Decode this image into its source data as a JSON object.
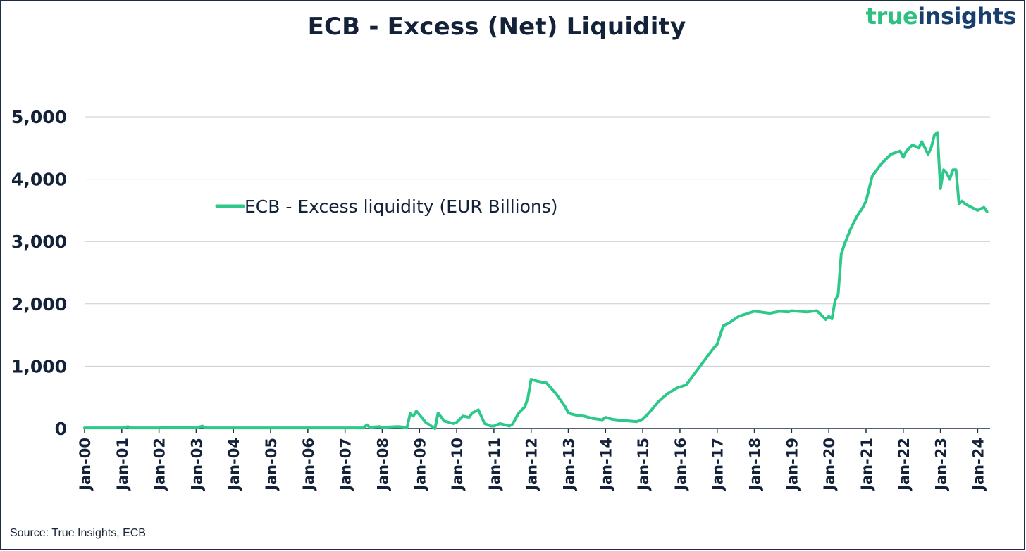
{
  "brand": {
    "word1": "true",
    "word2": "insights"
  },
  "source_note": "Source: True Insights, ECB",
  "colors": {
    "series": "#2ec98a",
    "text": "#132139",
    "grid": "#c9ccd1",
    "axis": "#1f2d44"
  },
  "chart_data": {
    "type": "line",
    "title": "ECB - Excess (Net) Liquidity",
    "xlabel": "",
    "ylabel": "",
    "ylim": [
      0,
      5000
    ],
    "yticks": [
      0,
      1000,
      2000,
      3000,
      4000,
      5000
    ],
    "ytick_labels": [
      "0",
      "1,000",
      "2,000",
      "3,000",
      "4,000",
      "5,000"
    ],
    "xlim": [
      "2000-01",
      "2024-05"
    ],
    "xtick_labels": [
      "Jan-00",
      "Jan-01",
      "Jan-02",
      "Jan-03",
      "Jan-04",
      "Jan-05",
      "Jan-06",
      "Jan-07",
      "Jan-08",
      "Jan-09",
      "Jan-10",
      "Jan-11",
      "Jan-12",
      "Jan-13",
      "Jan-14",
      "Jan-15",
      "Jan-16",
      "Jan-17",
      "Jan-18",
      "Jan-19",
      "Jan-20",
      "Jan-21",
      "Jan-22",
      "Jan-23",
      "Jan-24"
    ],
    "grid": "horizontal",
    "legend": "upper-left",
    "series": [
      {
        "name": "ECB - Excess liquidity (EUR Billions)",
        "x": [
          "2000-01",
          "2000-06",
          "2001-01",
          "2001-03",
          "2001-04",
          "2001-09",
          "2002-01",
          "2002-06",
          "2003-01",
          "2003-03",
          "2003-04",
          "2003-09",
          "2004-01",
          "2005-01",
          "2006-01",
          "2007-01",
          "2007-07",
          "2007-08",
          "2007-09",
          "2007-12",
          "2008-01",
          "2008-06",
          "2008-09",
          "2008-10",
          "2008-11",
          "2008-12",
          "2009-01",
          "2009-03",
          "2009-06",
          "2009-07",
          "2009-09",
          "2009-12",
          "2010-01",
          "2010-03",
          "2010-05",
          "2010-06",
          "2010-08",
          "2010-10",
          "2010-12",
          "2011-01",
          "2011-03",
          "2011-06",
          "2011-07",
          "2011-09",
          "2011-11",
          "2011-12",
          "2012-01",
          "2012-03",
          "2012-06",
          "2012-09",
          "2012-12",
          "2013-01",
          "2013-03",
          "2013-06",
          "2013-09",
          "2013-12",
          "2014-01",
          "2014-03",
          "2014-06",
          "2014-09",
          "2014-11",
          "2015-01",
          "2015-03",
          "2015-06",
          "2015-09",
          "2015-12",
          "2016-03",
          "2016-06",
          "2016-09",
          "2016-12",
          "2017-01",
          "2017-03",
          "2017-05",
          "2017-08",
          "2017-11",
          "2018-01",
          "2018-03",
          "2018-06",
          "2018-09",
          "2018-12",
          "2019-01",
          "2019-03",
          "2019-06",
          "2019-09",
          "2019-10",
          "2019-12",
          "2020-01",
          "2020-02",
          "2020-03",
          "2020-04",
          "2020-05",
          "2020-06",
          "2020-08",
          "2020-10",
          "2020-12",
          "2021-01",
          "2021-03",
          "2021-06",
          "2021-09",
          "2021-12",
          "2022-01",
          "2022-02",
          "2022-04",
          "2022-06",
          "2022-07",
          "2022-09",
          "2022-10",
          "2022-11",
          "2022-12",
          "2023-01",
          "2023-02",
          "2023-03",
          "2023-04",
          "2023-05",
          "2023-06",
          "2023-07",
          "2023-08",
          "2023-09",
          "2023-11",
          "2024-01",
          "2024-03",
          "2024-04"
        ],
        "y": [
          10,
          10,
          10,
          30,
          10,
          10,
          10,
          20,
          10,
          40,
          10,
          10,
          10,
          10,
          10,
          10,
          10,
          60,
          20,
          30,
          20,
          30,
          20,
          240,
          200,
          280,
          220,
          100,
          0,
          250,
          120,
          80,
          100,
          200,
          180,
          250,
          300,
          80,
          40,
          40,
          80,
          40,
          70,
          250,
          350,
          500,
          790,
          760,
          730,
          560,
          350,
          250,
          220,
          200,
          160,
          140,
          180,
          150,
          130,
          120,
          110,
          150,
          250,
          430,
          560,
          650,
          700,
          900,
          1100,
          1300,
          1350,
          1650,
          1700,
          1800,
          1850,
          1880,
          1870,
          1850,
          1880,
          1870,
          1890,
          1880,
          1870,
          1890,
          1850,
          1750,
          1800,
          1760,
          2050,
          2150,
          2800,
          2950,
          3200,
          3400,
          3550,
          3650,
          4050,
          4250,
          4400,
          4450,
          4350,
          4450,
          4550,
          4500,
          4600,
          4400,
          4500,
          4700,
          4750,
          3850,
          4150,
          4100,
          4000,
          4150,
          4150,
          3600,
          3650,
          3600,
          3550,
          3500,
          3550,
          3480
        ]
      }
    ]
  }
}
